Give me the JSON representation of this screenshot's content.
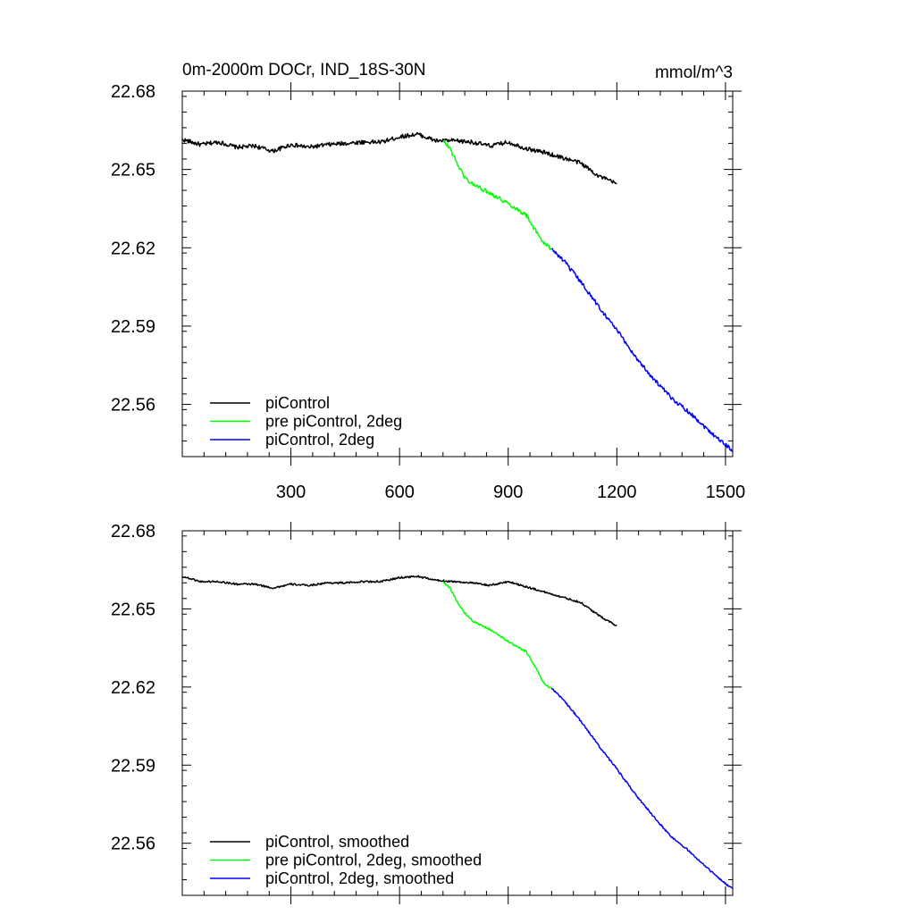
{
  "figure": {
    "title_left": "0m-2000m DOCr, IND_18S-30N",
    "title_right": "mmol/m^3"
  },
  "chart_data": [
    {
      "type": "line",
      "title": "0m-2000m DOCr, IND_18S-30N",
      "units": "mmol/m^3",
      "xlabel": "",
      "ylabel": "",
      "xlim": [
        0,
        1520
      ],
      "ylim": [
        22.54,
        22.68
      ],
      "xticks": [
        300,
        600,
        900,
        1200,
        1500
      ],
      "xtick_labels": [
        "300",
        "600",
        "900",
        "1200",
        "1500"
      ],
      "yticks": [
        22.56,
        22.59,
        22.62,
        22.65,
        22.68
      ],
      "ytick_labels": [
        "22.56",
        "22.59",
        "22.62",
        "22.65",
        "22.68"
      ],
      "legend_position": "bottom-left",
      "series": [
        {
          "name": "piControl",
          "color": "#000000",
          "x": [
            0,
            50,
            100,
            150,
            200,
            250,
            300,
            350,
            400,
            450,
            500,
            550,
            600,
            650,
            700,
            750,
            800,
            850,
            900,
            950,
            1000,
            1050,
            1100,
            1150,
            1200
          ],
          "y": [
            22.6615,
            22.6595,
            22.6605,
            22.6585,
            22.659,
            22.657,
            22.6595,
            22.6585,
            22.6595,
            22.66,
            22.6605,
            22.6605,
            22.6625,
            22.6635,
            22.661,
            22.661,
            22.6605,
            22.659,
            22.6605,
            22.658,
            22.6565,
            22.6545,
            22.6525,
            22.6475,
            22.6445
          ]
        },
        {
          "name": "pre piControl, 2deg",
          "color": "#00ff00",
          "x": [
            720,
            740,
            760,
            780,
            800,
            850,
            900,
            950,
            980,
            1000,
            1020
          ],
          "y": [
            22.661,
            22.658,
            22.652,
            22.647,
            22.6445,
            22.641,
            22.637,
            22.6325,
            22.6255,
            22.6215,
            22.6195
          ]
        },
        {
          "name": "piControl, 2deg",
          "color": "#0000ff",
          "x": [
            1020,
            1050,
            1100,
            1150,
            1200,
            1250,
            1300,
            1350,
            1400,
            1450,
            1500,
            1520
          ],
          "y": [
            22.6195,
            22.6155,
            22.607,
            22.5975,
            22.5885,
            22.5785,
            22.57,
            22.5625,
            22.557,
            22.5505,
            22.5445,
            22.5425
          ]
        }
      ]
    },
    {
      "type": "line",
      "title": "",
      "xlabel": "",
      "ylabel": "",
      "xlim": [
        0,
        1520
      ],
      "ylim": [
        22.54,
        22.68
      ],
      "xticks": [
        300,
        600,
        900,
        1200,
        1500
      ],
      "xtick_labels": [],
      "yticks": [
        22.56,
        22.59,
        22.62,
        22.65,
        22.68
      ],
      "ytick_labels": [
        "22.56",
        "22.59",
        "22.62",
        "22.65",
        "22.68"
      ],
      "legend_position": "bottom-left",
      "series": [
        {
          "name": "piControl, smoothed",
          "color": "#000000",
          "x": [
            0,
            50,
            100,
            150,
            200,
            250,
            300,
            350,
            400,
            450,
            500,
            550,
            600,
            650,
            700,
            750,
            800,
            850,
            900,
            950,
            1000,
            1050,
            1100,
            1150,
            1200
          ],
          "y": [
            22.6625,
            22.6605,
            22.6605,
            22.6595,
            22.6595,
            22.658,
            22.6595,
            22.659,
            22.66,
            22.66,
            22.6605,
            22.6605,
            22.662,
            22.6625,
            22.661,
            22.6605,
            22.66,
            22.659,
            22.6605,
            22.6585,
            22.6565,
            22.6545,
            22.6525,
            22.6475,
            22.6435
          ]
        },
        {
          "name": "pre piControl, 2deg, smoothed",
          "color": "#00ff00",
          "x": [
            720,
            740,
            760,
            780,
            800,
            850,
            900,
            950,
            980,
            1000,
            1020
          ],
          "y": [
            22.6605,
            22.658,
            22.6525,
            22.6485,
            22.6455,
            22.642,
            22.6375,
            22.6335,
            22.6265,
            22.621,
            22.6195
          ]
        },
        {
          "name": "piControl, 2deg, smoothed",
          "color": "#0000ff",
          "x": [
            1020,
            1050,
            1100,
            1150,
            1200,
            1250,
            1300,
            1350,
            1400,
            1450,
            1500,
            1520
          ],
          "y": [
            22.6195,
            22.6155,
            22.607,
            22.5975,
            22.5885,
            22.579,
            22.5705,
            22.5625,
            22.557,
            22.5505,
            22.5445,
            22.5425
          ]
        }
      ]
    }
  ]
}
